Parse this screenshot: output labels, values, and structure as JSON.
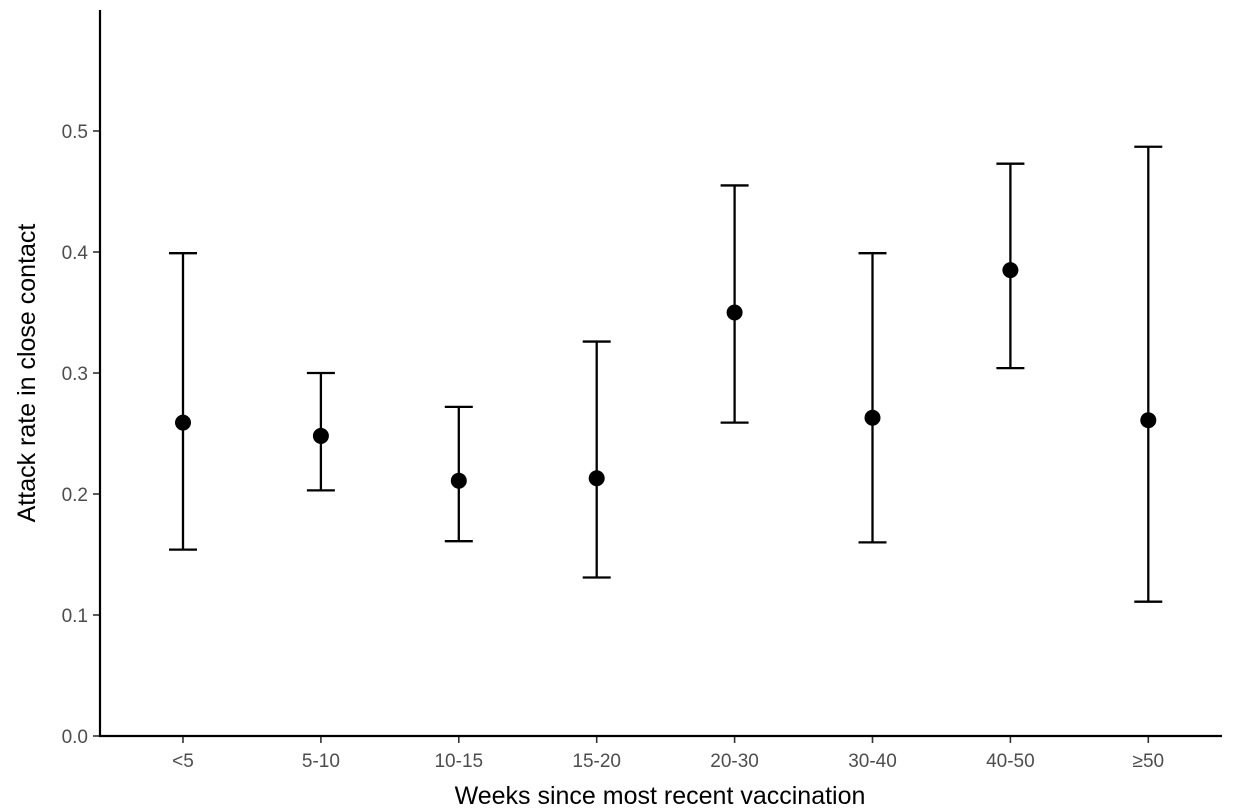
{
  "chart_data": {
    "type": "scatter",
    "title": "",
    "xlabel": "Weeks since most recent vaccination",
    "ylabel": "Attack rate in close contact",
    "categories": [
      "<5",
      "5-10",
      "10-15",
      "15-20",
      "20-30",
      "30-40",
      "40-50",
      "≥50"
    ],
    "series": [
      {
        "values": [
          0.259,
          0.248,
          0.211,
          0.213,
          0.35,
          0.263,
          0.385,
          0.261
        ],
        "lower": [
          0.154,
          0.203,
          0.161,
          0.131,
          0.259,
          0.16,
          0.304,
          0.111
        ],
        "upper": [
          0.399,
          0.3,
          0.272,
          0.326,
          0.455,
          0.399,
          0.473,
          0.487
        ]
      }
    ],
    "yticks": [
      "0.0",
      "0.1",
      "0.2",
      "0.3",
      "0.4",
      "0.5"
    ],
    "ylim": [
      0,
      0.5
    ],
    "grid": false,
    "legend": "none",
    "colors": {
      "marker": "#000000",
      "axis": "#000000",
      "tick_label": "#4d4d4d"
    }
  }
}
